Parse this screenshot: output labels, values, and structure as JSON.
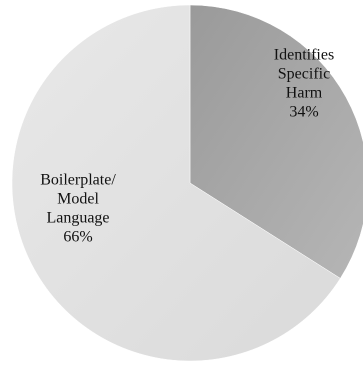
{
  "chart_data": {
    "type": "pie",
    "start_angle_deg": 0,
    "direction": "clockwise",
    "slices": [
      {
        "label_lines": [
          "Identifies",
          "Specific",
          "Harm",
          "34%"
        ],
        "value": 34,
        "color": "#a8a8a8"
      },
      {
        "label_lines": [
          "Boilerplate/",
          "Model",
          "Language",
          "66%"
        ],
        "value": 66,
        "color": "#e2e2e2"
      }
    ],
    "legend": "none"
  }
}
